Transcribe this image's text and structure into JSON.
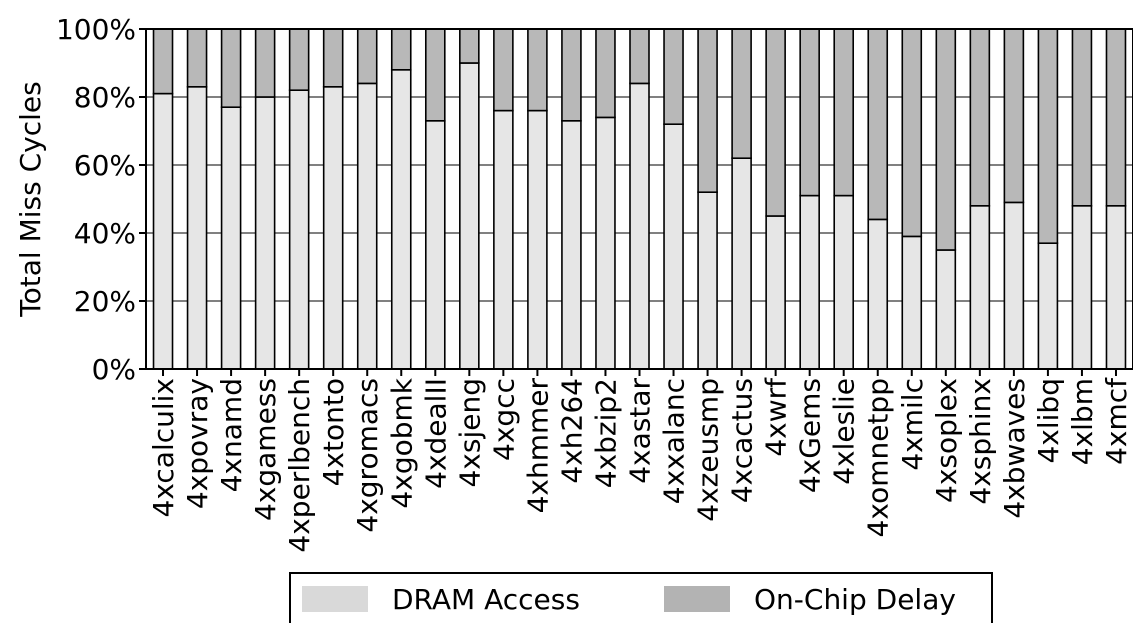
{
  "chart_data": {
    "type": "bar",
    "stacked": true,
    "ylabel": "Total Miss Cycles",
    "xlabel": "",
    "title": "",
    "ylim": [
      0,
      100
    ],
    "yticks": [
      0,
      20,
      40,
      60,
      80,
      100
    ],
    "ytick_labels": [
      "0%",
      "20%",
      "40%",
      "60%",
      "80%",
      "100%"
    ],
    "grid": true,
    "legend_position": "bottom",
    "categories": [
      "4xcalculix",
      "4xpovray",
      "4xnamd",
      "4xgamess",
      "4xperlbench",
      "4xtonto",
      "4xgromacs",
      "4xgobmk",
      "4xdealII",
      "4xsjeng",
      "4xgcc",
      "4xhmmer",
      "4xh264",
      "4xbzip2",
      "4xastar",
      "4xxalanc",
      "4xzeusmp",
      "4xcactus",
      "4xwrf",
      "4xGems",
      "4xleslie",
      "4xomnetpp",
      "4xmilc",
      "4xsoplex",
      "4xsphinx",
      "4xbwaves",
      "4xlibq",
      "4xlbm",
      "4xmcf"
    ],
    "series": [
      {
        "name": "DRAM Access",
        "color": "#e6e6e6",
        "values": [
          81,
          83,
          77,
          80,
          82,
          83,
          84,
          88,
          73,
          90,
          76,
          76,
          73,
          74,
          84,
          72,
          52,
          62,
          45,
          51,
          51,
          44,
          39,
          35,
          48,
          49,
          37,
          48,
          48
        ]
      },
      {
        "name": "On-Chip Delay",
        "color": "#b8b8b8",
        "values": [
          19,
          17,
          23,
          20,
          18,
          17,
          16,
          12,
          27,
          10,
          24,
          24,
          27,
          26,
          16,
          28,
          48,
          38,
          55,
          49,
          49,
          56,
          61,
          65,
          52,
          51,
          63,
          52,
          52
        ]
      }
    ],
    "legend_swatch_colors": [
      "#d9d9d9",
      "#b3b3b3"
    ]
  }
}
